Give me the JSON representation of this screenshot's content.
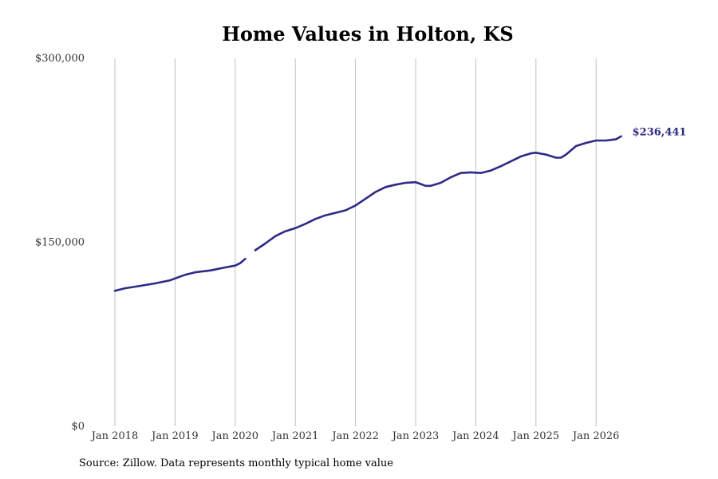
{
  "chart_data": {
    "type": "line",
    "title": "Home Values in Holton, KS",
    "xlabel": "",
    "ylabel": "",
    "ylim": [
      0,
      300000
    ],
    "xlim": [
      "2018-01",
      "2026-08"
    ],
    "y_ticks": [
      "$0",
      "$150,000",
      "$300,000"
    ],
    "x_ticks": [
      "Jan 2018",
      "Jan 2019",
      "Jan 2020",
      "Jan 2021",
      "Jan 2022",
      "Jan 2023",
      "Jan 2024",
      "Jan 2025",
      "Jan 2026"
    ],
    "grid": "vertical",
    "legend": "none",
    "end_label": "$236,441",
    "colors": {
      "line": "#2e2a85",
      "grid": "#c0c0c0",
      "label": "#2e2a85"
    },
    "series": [
      {
        "segments": [
          {
            "x": [
              "2018-01",
              "2018-03",
              "2018-06",
              "2018-09",
              "2018-12",
              "2019-01",
              "2019-03",
              "2019-05",
              "2019-08",
              "2019-11",
              "2020-01",
              "2020-02",
              "2020-03"
            ],
            "y": [
              110500,
              112500,
              114500,
              116500,
              119000,
              120500,
              123500,
              125500,
              127000,
              129500,
              131000,
              133000,
              136500
            ]
          },
          {
            "x": [
              "2020-05",
              "2020-07",
              "2020-09",
              "2020-11",
              "2021-01",
              "2021-03",
              "2021-05",
              "2021-07",
              "2021-09",
              "2021-11",
              "2022-01",
              "2022-03",
              "2022-05",
              "2022-07",
              "2022-09",
              "2022-11",
              "2023-01",
              "2023-02",
              "2023-03",
              "2023-04",
              "2023-06",
              "2023-08",
              "2023-10",
              "2023-12",
              "2024-02",
              "2024-04",
              "2024-06",
              "2024-08",
              "2024-10",
              "2024-12",
              "2025-01",
              "2025-03",
              "2025-05",
              "2025-06",
              "2025-07",
              "2025-09",
              "2025-11",
              "2026-01",
              "2026-03",
              "2026-05",
              "2026-06"
            ],
            "y": [
              143500,
              149000,
              155000,
              159000,
              161500,
              165000,
              169000,
              172000,
              174000,
              176000,
              180000,
              185500,
              191000,
              195000,
              197000,
              198500,
              199000,
              197500,
              196000,
              196000,
              198500,
              203000,
              206500,
              207000,
              206500,
              208500,
              212000,
              216000,
              220000,
              222500,
              223000,
              221500,
              219000,
              219000,
              221500,
              228500,
              231000,
              233000,
              233000,
              234000,
              236441
            ]
          }
        ]
      }
    ]
  },
  "source_note": "Source: Zillow. Data represents monthly typical home value"
}
